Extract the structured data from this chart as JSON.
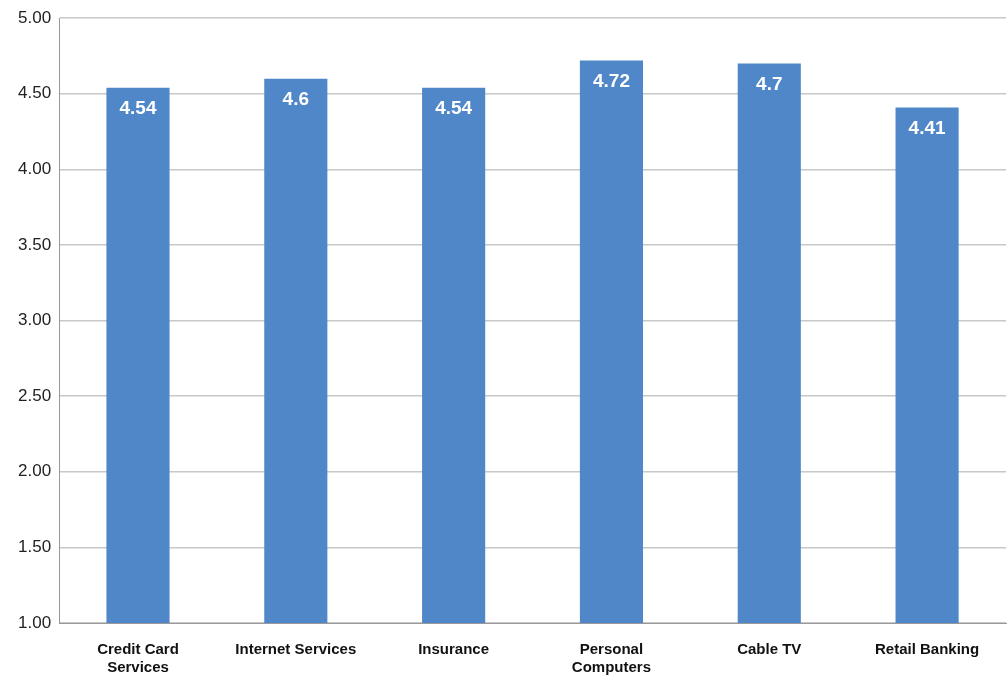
{
  "chart_data": {
    "type": "bar",
    "categories": [
      "Credit Card Services",
      "Internet Services",
      "Insurance",
      "Personal Computers",
      "Cable TV",
      "Retail Banking"
    ],
    "values": [
      4.54,
      4.6,
      4.54,
      4.72,
      4.7,
      4.41
    ],
    "color": "#4f87c9",
    "ylim": [
      1,
      5
    ],
    "yticks": [
      {
        "value": 1,
        "label": "1.00"
      },
      {
        "value": 1.5,
        "label": "1.50"
      },
      {
        "value": 2,
        "label": "2.00"
      },
      {
        "value": 2.5,
        "label": "2.50"
      },
      {
        "value": 3,
        "label": "3.00"
      },
      {
        "value": 3.5,
        "label": "3.50"
      },
      {
        "value": 4,
        "label": "4.00"
      },
      {
        "value": 4.5,
        "label": "4.50"
      },
      {
        "value": 5,
        "label": "5.00"
      }
    ],
    "grid": "y",
    "data_labels": true
  }
}
